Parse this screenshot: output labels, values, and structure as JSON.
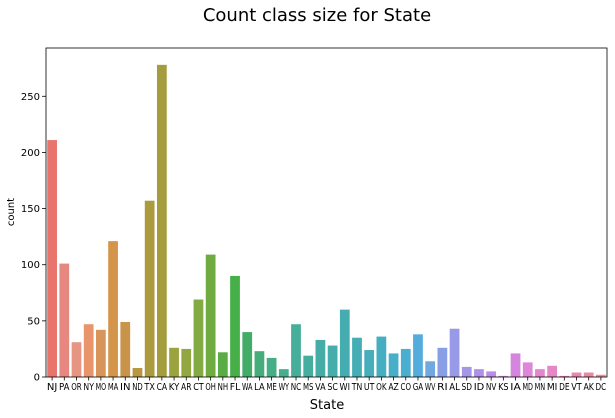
{
  "chart_data": {
    "type": "bar",
    "title": "Count class size for State",
    "xlabel": "State",
    "ylabel": "count",
    "ylim": [
      0,
      293
    ],
    "yticks": [
      0,
      50,
      100,
      150,
      200,
      250
    ],
    "grid": false,
    "legend": "none",
    "categories": [
      "NJ",
      "PA",
      "OR",
      "NY",
      "MO",
      "MA",
      "IN",
      "ND",
      "TX",
      "CA",
      "KY",
      "AR",
      "CT",
      "OH",
      "NH",
      "FL",
      "WA",
      "LA",
      "ME",
      "WY",
      "NC",
      "MS",
      "VA",
      "SC",
      "WI",
      "TN",
      "UT",
      "OK",
      "AZ",
      "CO",
      "GA",
      "WV",
      "RI",
      "AL",
      "SD",
      "ID",
      "NV",
      "KS",
      "IA",
      "MD",
      "MN",
      "MI",
      "DE",
      "VT",
      "AK",
      "DC"
    ],
    "values": [
      211,
      101,
      31,
      47,
      42,
      121,
      49,
      8,
      157,
      278,
      26,
      25,
      69,
      109,
      22,
      90,
      40,
      23,
      17,
      7,
      47,
      19,
      33,
      28,
      60,
      35,
      24,
      36,
      21,
      25,
      38,
      14,
      26,
      43,
      9,
      7,
      5,
      1,
      21,
      13,
      7,
      10,
      1,
      4,
      4,
      2
    ],
    "colors": [
      "#e8746c",
      "#e6887f",
      "#e69583",
      "#e8956c",
      "#d8955b",
      "#d4944a",
      "#c9944a",
      "#b7973f",
      "#ab9b3e",
      "#a39d3e",
      "#9ba33f",
      "#92a641",
      "#83aa43",
      "#6fab40",
      "#5aad44",
      "#46af48",
      "#43ac68",
      "#45ad7b",
      "#45ae86",
      "#45ae8f",
      "#46ae99",
      "#46ae9f",
      "#45ada6",
      "#45adab",
      "#45acaf",
      "#44adb5",
      "#45adbb",
      "#46aec1",
      "#48afc9",
      "#4aaed1",
      "#53acdb",
      "#72a8e0",
      "#889fe6",
      "#9899e7",
      "#a597e8",
      "#b18fe9",
      "#bc8de7",
      "#c98be4",
      "#d685de",
      "#de86d7",
      "#e386cd",
      "#e686c4",
      "#e787b9",
      "#e888b0",
      "#e98aa5",
      "#ea8c99"
    ]
  }
}
